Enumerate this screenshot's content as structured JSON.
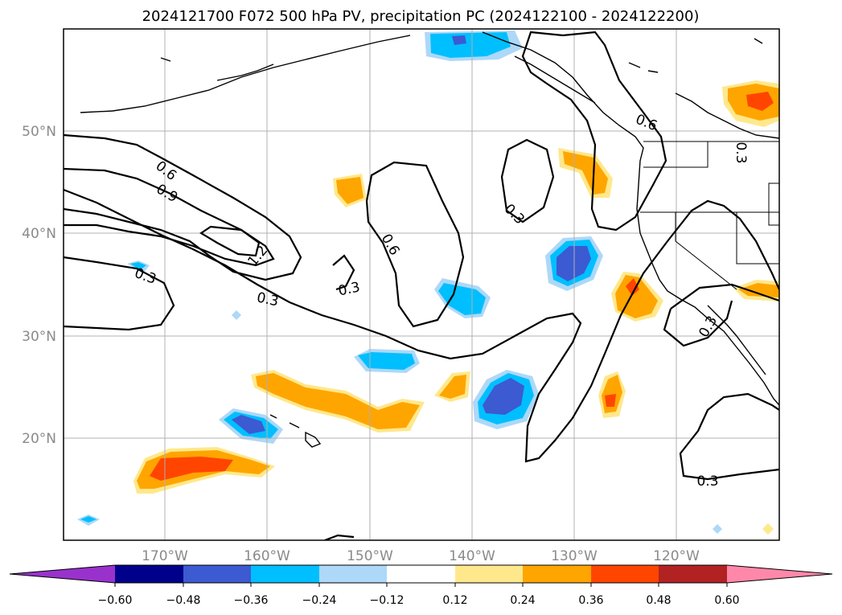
{
  "title": "2024121700 F072 500 hPa PV, precipitation PC (2024122100 - 2024122200)",
  "axes": {
    "lat_labels": [
      "50°N",
      "40°N",
      "30°N",
      "20°N"
    ],
    "lon_labels": [
      "170°W",
      "160°W",
      "150°W",
      "140°W",
      "130°W",
      "120°W"
    ]
  },
  "colorbar": {
    "colors": [
      "#9932cc",
      "#00008b",
      "#3c5ad2",
      "#00bfff",
      "#add8f8",
      "#ffffff",
      "#ffe88c",
      "#ffa500",
      "#ff4500",
      "#b22222",
      "#ff88aa"
    ],
    "tick_labels": [
      "−0.60",
      "−0.48",
      "−0.36",
      "−0.24",
      "−0.12",
      "0.12",
      "0.24",
      "0.36",
      "0.48",
      "0.60"
    ]
  },
  "contour_labels": [
    "0.6",
    "0.9",
    "1.2",
    "0.3",
    "0.3",
    "0.3",
    "0.6",
    "0.3",
    "0.6",
    "0.3",
    "0.3",
    "0.3"
  ]
}
